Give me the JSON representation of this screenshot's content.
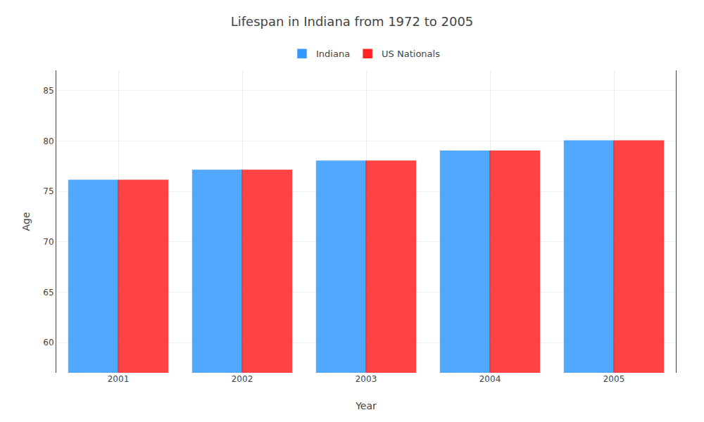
{
  "chart_data": {
    "type": "bar",
    "title": "Lifespan in Indiana from 1972 to 2005",
    "x_label": "Year",
    "y_label": "Age",
    "categories": [
      "2001",
      "2002",
      "2003",
      "2004",
      "2005"
    ],
    "series": [
      {
        "name": "Indiana",
        "color": "#3399ff",
        "values": [
          76.1,
          77.1,
          78.0,
          79.0,
          80.0
        ]
      },
      {
        "name": "US Nationals",
        "color": "#ff2222",
        "values": [
          76.1,
          77.1,
          78.0,
          79.0,
          80.0
        ]
      }
    ],
    "ylim": [
      57,
      87
    ],
    "yticks": [
      60,
      65,
      70,
      75,
      80,
      85
    ],
    "grid": true,
    "legend": "top"
  }
}
